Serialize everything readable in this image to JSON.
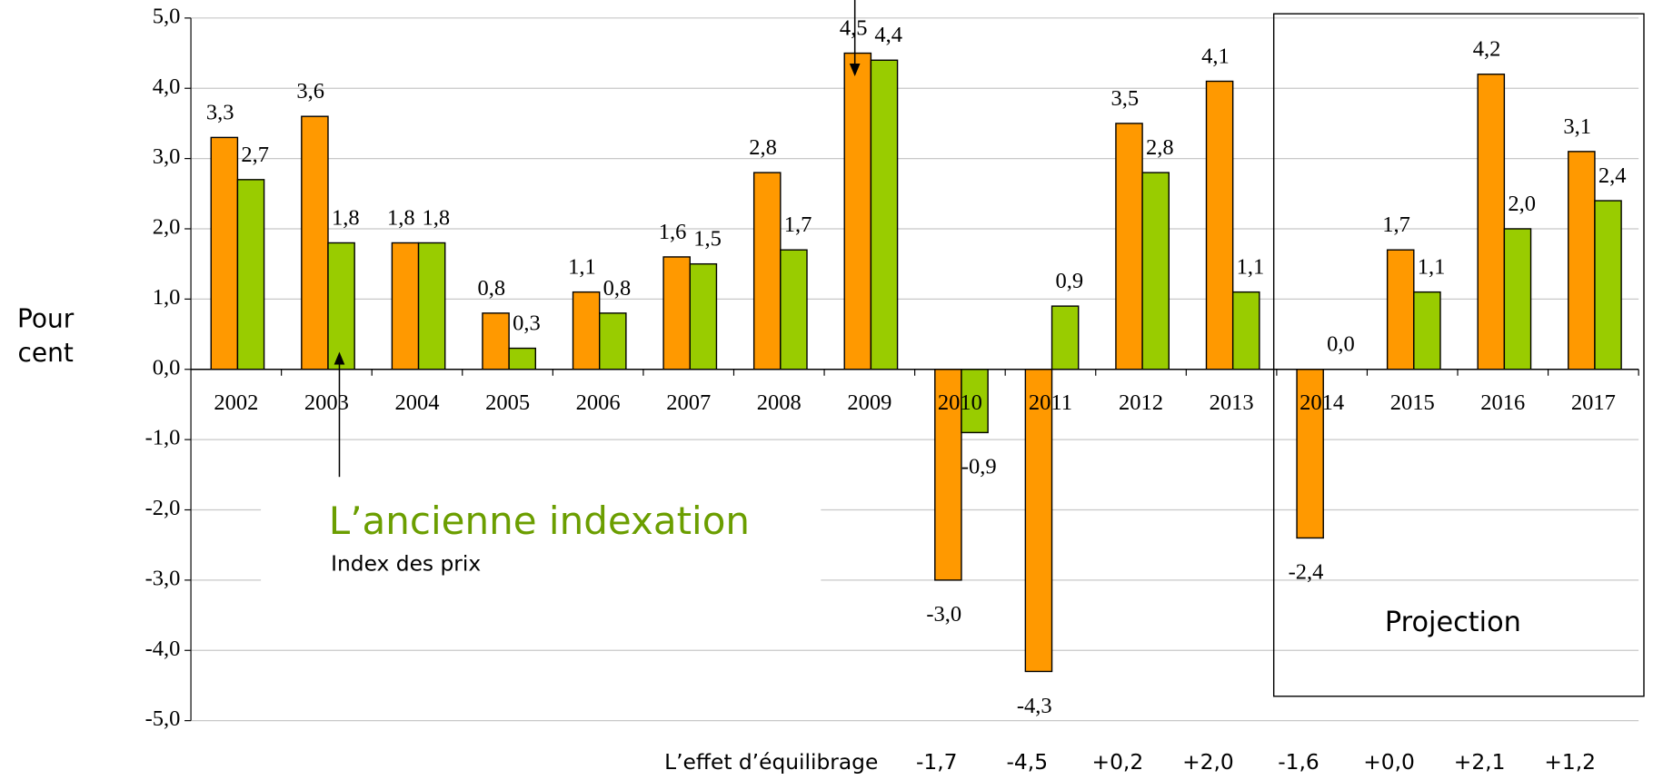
{
  "chart_data": {
    "type": "bar",
    "ylabel": "Pour cent",
    "categories": [
      "2002",
      "2003",
      "2004",
      "2005",
      "2006",
      "2007",
      "2008",
      "2009",
      "2010",
      "2011",
      "2012",
      "2013",
      "2014",
      "2015",
      "2016",
      "2017"
    ],
    "series": [
      {
        "color": "#ff9900",
        "values": [
          3.3,
          3.6,
          1.8,
          0.8,
          1.1,
          1.6,
          2.8,
          4.5,
          -3.0,
          -4.3,
          3.5,
          4.1,
          -2.4,
          1.7,
          4.2,
          3.1
        ],
        "value_labels": [
          "3,3",
          "3,6",
          "1,8",
          "0,8",
          "1,1",
          "1,6",
          "2,8",
          "4,5",
          "-3,0",
          "-4,3",
          "3,5",
          "4,1",
          "-2,4",
          "1,7",
          "4,2",
          "3,1"
        ]
      },
      {
        "color": "#99cc00",
        "values": [
          2.7,
          1.8,
          1.8,
          0.3,
          0.8,
          1.5,
          1.7,
          4.4,
          -0.9,
          0.9,
          2.8,
          1.1,
          0.0,
          1.1,
          2.0,
          2.4
        ],
        "value_labels": [
          "2,7",
          "1,8",
          "1,8",
          "0,3",
          "0,8",
          "1,5",
          "1,7",
          "4,4",
          "-0,9",
          "0,9",
          "2,8",
          "1,1",
          "0,0",
          "1,1",
          "2,0",
          "2,4"
        ]
      }
    ],
    "ylim": [
      -5,
      5
    ],
    "yticks": [
      {
        "value": -5,
        "label": "-5,0"
      },
      {
        "value": -4,
        "label": "-4,0"
      },
      {
        "value": -3,
        "label": "-3,0"
      },
      {
        "value": -2,
        "label": "-2,0"
      },
      {
        "value": -1,
        "label": "-1,0"
      },
      {
        "value": 0,
        "label": "0,0"
      },
      {
        "value": 1,
        "label": "1,0"
      },
      {
        "value": 2,
        "label": "2,0"
      },
      {
        "value": 3,
        "label": "3,0"
      },
      {
        "value": 4,
        "label": "4,0"
      },
      {
        "value": 5,
        "label": "5,0"
      }
    ],
    "grid": true,
    "annotations": {
      "old_indexation": "L’ancienne indexation",
      "price_index": "Index des prix",
      "projection": "Projection"
    },
    "balancing_effect": {
      "label": "L’effet d’équilibrage",
      "values": [
        -1.7,
        -4.5,
        0.2,
        2.0,
        -1.6,
        0.0,
        2.1,
        1.2
      ],
      "value_labels": [
        "-1,7",
        "-4,5",
        "+0,2",
        "+2,0",
        "-1,6",
        "+0,0",
        "+2,1",
        "+1,2"
      ]
    }
  }
}
